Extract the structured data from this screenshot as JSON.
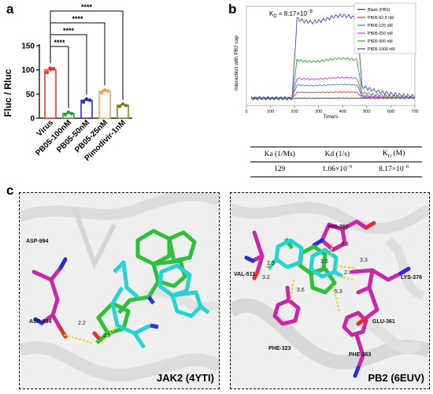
{
  "panel_a": {
    "letter": "a",
    "chart_data": {
      "type": "bar",
      "categories": [
        "Virus",
        "PB05-100nM",
        "PB05-50nM",
        "PB05-25nM",
        "Pimodivir-1nM"
      ],
      "values": [
        100,
        10,
        37,
        56,
        27
      ],
      "points": [
        [
          96,
          101,
          104
        ],
        [
          9,
          10,
          11
        ],
        [
          35,
          37,
          39
        ],
        [
          54,
          56,
          58
        ],
        [
          26,
          27,
          28
        ]
      ],
      "errors": [
        4,
        1,
        2,
        2,
        1
      ],
      "colors": [
        "#e8352b",
        "#33a02c",
        "#2d2fd6",
        "#f5a25b",
        "#6e8a1f"
      ],
      "ylabel": "Fluc / Rluc",
      "yticks": [
        "0",
        "50",
        "100",
        "150"
      ],
      "ylim": [
        0,
        150
      ],
      "significance": [
        "****",
        "****",
        "****",
        "****"
      ],
      "bracket_targets": [
        4,
        3,
        2,
        1
      ]
    }
  },
  "panel_b": {
    "letter": "b",
    "chart_data": {
      "type": "line",
      "kd_label": "K",
      "kd_sub": "D",
      "kd_value": " = 8.17×10",
      "kd_exp": "−8",
      "ylabel": "Interaction with PB2 cap",
      "xlabel": "Time/s",
      "xticks": [
        "0",
        "100",
        "200",
        "300",
        "400",
        "500",
        "600",
        "700"
      ],
      "xlim": [
        0,
        700
      ],
      "ylim": [
        -10,
        125
      ],
      "series": [
        {
          "name": "Blank (PBS)",
          "color": "#333333",
          "plateau": 0
        },
        {
          "name": "PB05-62.5 nM",
          "color": "#e8352b",
          "plateau": 8
        },
        {
          "name": "PB05-125 nM",
          "color": "#4a7cdc",
          "plateau": 18
        },
        {
          "name": "PB05-250 nM",
          "color": "#d43ad9",
          "plateau": 27
        },
        {
          "name": "PB05-500 nM",
          "color": "#2ea12e",
          "plateau": 52
        },
        {
          "name": "PB05-1000 nM",
          "color": "#4b3fc4",
          "plateau": 108
        }
      ]
    },
    "table": {
      "headers": [
        {
          "main": "Ka (1/Ms)"
        },
        {
          "main": "Kd (1/s)"
        },
        {
          "main": "K",
          "sub": "D",
          "tail": " (M)"
        }
      ],
      "row": [
        {
          "main": "129"
        },
        {
          "main": "1.06×10",
          "exp": "−6"
        },
        {
          "main": "8.17×10",
          "exp": "−8"
        }
      ]
    }
  },
  "panel_c": {
    "letter": "c",
    "left": {
      "caption": "JAK2 (4YTI)",
      "residues": [
        "ASP-994",
        "ASP-994"
      ],
      "distances": [
        "2.2",
        "2.9"
      ]
    },
    "right": {
      "caption": "PB2 (6EUV)",
      "residues": [
        "HIS-357",
        "VAL-511",
        "LYS-376",
        "GLU-361",
        "PHE-323",
        "PHE-363"
      ],
      "distances": [
        "3.8",
        "3.3",
        "3.5",
        "2.9",
        "2.9",
        "3.2",
        "3.6",
        "5.3"
      ]
    }
  }
}
